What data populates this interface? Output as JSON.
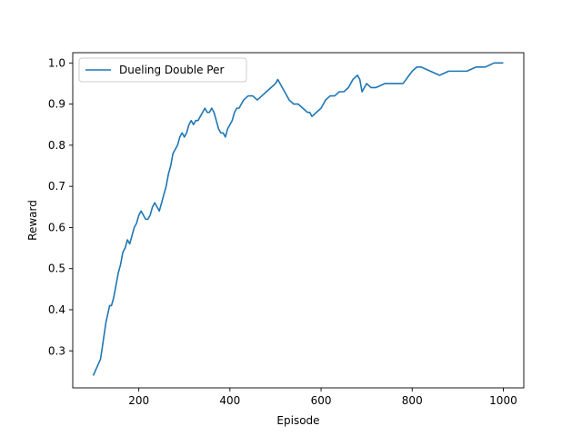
{
  "chart_data": {
    "type": "line",
    "title": "",
    "xlabel": "Episode",
    "ylabel": "Reward",
    "xlim": [
      55,
      1045
    ],
    "ylim": [
      0.21,
      1.025
    ],
    "xticks": [
      200,
      400,
      600,
      800,
      1000
    ],
    "yticks": [
      0.3,
      0.4,
      0.5,
      0.6,
      0.7,
      0.8,
      0.9,
      1.0
    ],
    "xtick_labels": [
      "200",
      "400",
      "600",
      "800",
      "1000"
    ],
    "ytick_labels": [
      "0.3",
      "0.4",
      "0.5",
      "0.6",
      "0.7",
      "0.8",
      "0.9",
      "1.0"
    ],
    "grid": false,
    "legend_position": "upper-left",
    "series_color": "#1f77b4",
    "series": [
      {
        "name": "Dueling Double Per",
        "x": [
          100,
          104,
          108,
          112,
          116,
          120,
          124,
          128,
          132,
          136,
          140,
          145,
          150,
          155,
          160,
          165,
          170,
          175,
          180,
          185,
          190,
          195,
          200,
          205,
          210,
          215,
          220,
          225,
          230,
          235,
          240,
          245,
          250,
          255,
          260,
          265,
          270,
          275,
          280,
          285,
          290,
          295,
          300,
          305,
          310,
          315,
          320,
          325,
          330,
          335,
          340,
          345,
          350,
          355,
          360,
          365,
          370,
          375,
          380,
          385,
          390,
          395,
          400,
          405,
          410,
          415,
          420,
          425,
          430,
          440,
          450,
          460,
          470,
          480,
          490,
          500,
          505,
          510,
          515,
          520,
          525,
          530,
          540,
          550,
          560,
          570,
          575,
          580,
          590,
          600,
          605,
          610,
          620,
          630,
          640,
          650,
          660,
          670,
          680,
          685,
          690,
          695,
          700,
          710,
          720,
          740,
          760,
          780,
          800,
          810,
          820,
          840,
          860,
          880,
          900,
          920,
          940,
          960,
          980,
          1000
        ],
        "values": [
          0.24,
          0.25,
          0.26,
          0.27,
          0.28,
          0.31,
          0.34,
          0.37,
          0.39,
          0.41,
          0.41,
          0.43,
          0.46,
          0.49,
          0.51,
          0.54,
          0.55,
          0.57,
          0.56,
          0.58,
          0.6,
          0.61,
          0.63,
          0.64,
          0.63,
          0.62,
          0.62,
          0.63,
          0.65,
          0.66,
          0.65,
          0.64,
          0.66,
          0.68,
          0.7,
          0.73,
          0.75,
          0.78,
          0.79,
          0.8,
          0.82,
          0.83,
          0.82,
          0.83,
          0.85,
          0.86,
          0.85,
          0.86,
          0.86,
          0.87,
          0.88,
          0.89,
          0.88,
          0.88,
          0.89,
          0.88,
          0.86,
          0.84,
          0.83,
          0.83,
          0.82,
          0.84,
          0.85,
          0.86,
          0.88,
          0.89,
          0.89,
          0.9,
          0.91,
          0.92,
          0.92,
          0.91,
          0.92,
          0.93,
          0.94,
          0.95,
          0.96,
          0.95,
          0.94,
          0.93,
          0.92,
          0.91,
          0.9,
          0.9,
          0.89,
          0.88,
          0.88,
          0.87,
          0.88,
          0.89,
          0.9,
          0.91,
          0.92,
          0.92,
          0.93,
          0.93,
          0.94,
          0.96,
          0.97,
          0.96,
          0.93,
          0.94,
          0.95,
          0.94,
          0.94,
          0.95,
          0.95,
          0.95,
          0.98,
          0.99,
          0.99,
          0.98,
          0.97,
          0.98,
          0.98,
          0.98,
          0.99,
          0.99,
          1.0,
          1.0
        ]
      }
    ]
  }
}
